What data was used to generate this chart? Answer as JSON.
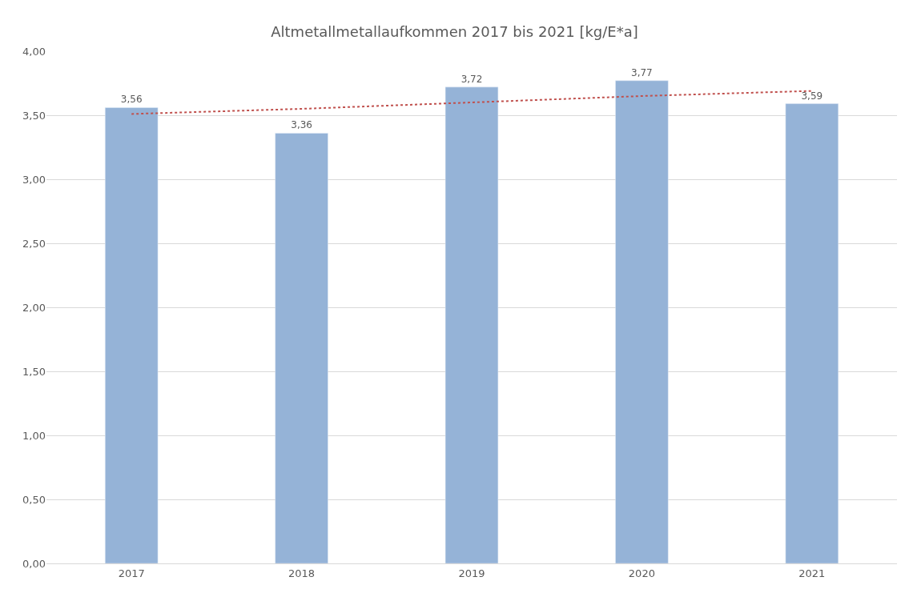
{
  "chart_data": {
    "type": "bar",
    "title": "Altmetallmetallaufkommen 2017 bis 2021 [kg/E*a]",
    "categories": [
      "2017",
      "2018",
      "2019",
      "2020",
      "2021"
    ],
    "series": [
      {
        "color": "#95b3d7",
        "values": [
          3.56,
          3.36,
          3.72,
          3.77,
          3.59
        ],
        "value_labels": [
          "3,56",
          "3,36",
          "3,72",
          "3,77",
          "3,59"
        ]
      },
      {
        "type": "line",
        "color": "#c0504d",
        "line_style": "dotted",
        "values": [
          3.51,
          3.55,
          3.6,
          3.65,
          3.69
        ]
      }
    ],
    "ylim": [
      0,
      4
    ],
    "yticks": [
      {
        "value": 0,
        "label": "0,00"
      },
      {
        "value": 0.5,
        "label": "0,50"
      },
      {
        "value": 1,
        "label": "1,00"
      },
      {
        "value": 1.5,
        "label": "1,50"
      },
      {
        "value": 2,
        "label": "2,00"
      },
      {
        "value": 2.5,
        "label": "2,50"
      },
      {
        "value": 3,
        "label": "3,00"
      },
      {
        "value": 3.5,
        "label": "3,50"
      },
      {
        "value": 4,
        "label": "4,00"
      }
    ],
    "grid": "y",
    "marker": "none"
  }
}
